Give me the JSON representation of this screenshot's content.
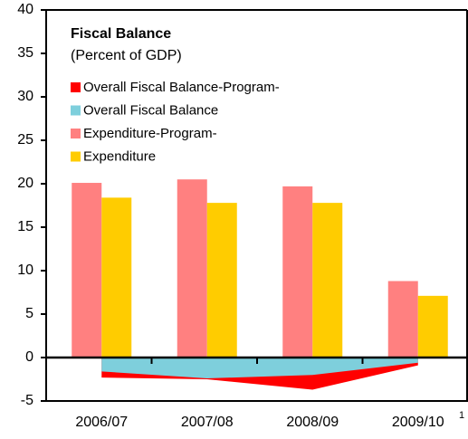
{
  "chart_data": {
    "type": "bar",
    "title": "Fiscal Balance",
    "subtitle": "(Percent of GDP)",
    "footnote": "1",
    "categories": [
      "2006/07",
      "2007/08",
      "2008/09",
      "2009/10"
    ],
    "series": [
      {
        "name": "Overall Fiscal Balance-Program-",
        "type": "area",
        "color": "#ff0000",
        "values": [
          -2.3,
          -2.5,
          -3.7,
          -0.9
        ]
      },
      {
        "name": "Overall Fiscal Balance",
        "type": "area",
        "color": "#7ecfdc",
        "values": [
          -1.6,
          -2.4,
          -2.0,
          -0.6
        ]
      },
      {
        "name": "Expenditure-Program-",
        "type": "bar",
        "color": "#ff8080",
        "values": [
          20.1,
          20.5,
          19.7,
          8.8
        ]
      },
      {
        "name": "Expenditure",
        "type": "bar",
        "color": "#ffcc00",
        "values": [
          18.4,
          17.8,
          17.8,
          7.1
        ]
      }
    ],
    "ylim": [
      -5,
      40
    ],
    "yticks": [
      -5,
      0,
      5,
      10,
      15,
      20,
      25,
      30,
      35,
      40
    ]
  }
}
